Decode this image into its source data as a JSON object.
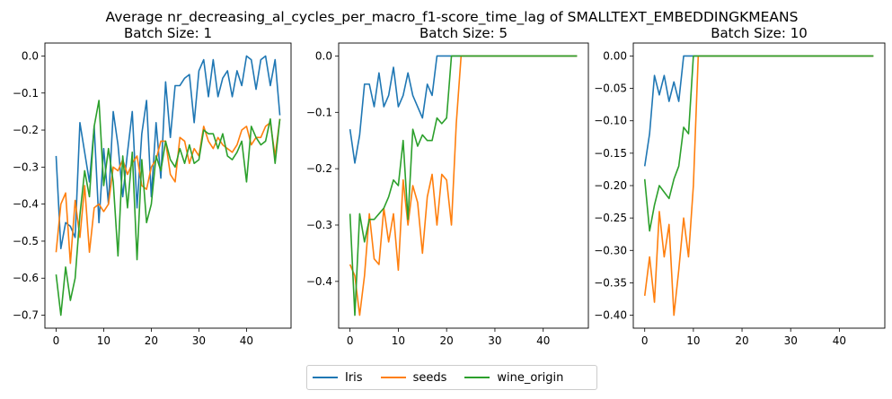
{
  "title": "Average nr_decreasing_al_cycles_per_macro_f1-score_time_lag of SMALLTEXT_EMBEDDINGKMEANS",
  "colors": {
    "Iris": "#1f77b4",
    "seeds": "#ff7f0e",
    "wine_origin": "#2ca02c"
  },
  "legend": [
    "Iris",
    "seeds",
    "wine_origin"
  ],
  "chart_data": [
    {
      "type": "line",
      "title": "Batch Size: 1",
      "xlim": [
        -2.35,
        49.35
      ],
      "ylim": [
        -0.735,
        0.035
      ],
      "xticks": [
        0,
        10,
        20,
        30,
        40
      ],
      "yticks": [
        0.0,
        -0.1,
        -0.2,
        -0.3,
        -0.4,
        -0.5,
        -0.6,
        -0.7
      ],
      "ytick_labels": [
        "0.0",
        "−0.1",
        "−0.2",
        "−0.3",
        "−0.4",
        "−0.5",
        "−0.6",
        "−0.7"
      ],
      "series": [
        {
          "name": "Iris",
          "x": [
            0,
            1,
            2,
            3,
            4,
            5,
            6,
            7,
            8,
            9,
            10,
            11,
            12,
            13,
            14,
            15,
            16,
            17,
            18,
            19,
            20,
            21,
            22,
            23,
            24,
            25,
            26,
            27,
            28,
            29,
            30,
            31,
            32,
            33,
            34,
            35,
            36,
            37,
            38,
            39,
            40,
            41,
            42,
            43,
            44,
            45,
            46,
            47
          ],
          "values": [
            -0.27,
            -0.52,
            -0.45,
            -0.46,
            -0.49,
            -0.18,
            -0.26,
            -0.34,
            -0.19,
            -0.45,
            -0.25,
            -0.4,
            -0.15,
            -0.24,
            -0.38,
            -0.26,
            -0.15,
            -0.41,
            -0.21,
            -0.12,
            -0.38,
            -0.18,
            -0.33,
            -0.07,
            -0.22,
            -0.08,
            -0.08,
            -0.06,
            -0.05,
            -0.18,
            -0.04,
            -0.01,
            -0.11,
            -0.01,
            -0.11,
            -0.06,
            -0.04,
            -0.11,
            -0.04,
            -0.08,
            0.0,
            -0.01,
            -0.09,
            -0.01,
            -0.0,
            -0.08,
            -0.01,
            -0.16
          ]
        },
        {
          "name": "seeds",
          "x": [
            0,
            1,
            2,
            3,
            4,
            5,
            6,
            7,
            8,
            9,
            10,
            11,
            12,
            13,
            14,
            15,
            16,
            17,
            18,
            19,
            20,
            21,
            22,
            23,
            24,
            25,
            26,
            27,
            28,
            29,
            30,
            31,
            32,
            33,
            34,
            35,
            36,
            37,
            38,
            39,
            40,
            41,
            42,
            43,
            44,
            45,
            46,
            47
          ],
          "values": [
            -0.53,
            -0.4,
            -0.37,
            -0.56,
            -0.39,
            -0.49,
            -0.35,
            -0.53,
            -0.41,
            -0.4,
            -0.42,
            -0.4,
            -0.3,
            -0.31,
            -0.28,
            -0.32,
            -0.29,
            -0.27,
            -0.35,
            -0.36,
            -0.3,
            -0.28,
            -0.23,
            -0.23,
            -0.32,
            -0.34,
            -0.22,
            -0.23,
            -0.29,
            -0.25,
            -0.27,
            -0.19,
            -0.23,
            -0.25,
            -0.22,
            -0.24,
            -0.25,
            -0.26,
            -0.24,
            -0.2,
            -0.19,
            -0.24,
            -0.22,
            -0.22,
            -0.19,
            -0.18,
            -0.27,
            -0.17
          ]
        },
        {
          "name": "wine_origin",
          "x": [
            0,
            1,
            2,
            3,
            4,
            5,
            6,
            7,
            8,
            9,
            10,
            11,
            12,
            13,
            14,
            15,
            16,
            17,
            18,
            19,
            20,
            21,
            22,
            23,
            24,
            25,
            26,
            27,
            28,
            29,
            30,
            31,
            32,
            33,
            34,
            35,
            36,
            37,
            38,
            39,
            40,
            41,
            42,
            43,
            44,
            45,
            46,
            47
          ],
          "values": [
            -0.59,
            -0.7,
            -0.57,
            -0.66,
            -0.6,
            -0.43,
            -0.31,
            -0.38,
            -0.19,
            -0.12,
            -0.35,
            -0.25,
            -0.34,
            -0.54,
            -0.27,
            -0.41,
            -0.26,
            -0.55,
            -0.28,
            -0.45,
            -0.4,
            -0.27,
            -0.31,
            -0.23,
            -0.28,
            -0.3,
            -0.25,
            -0.29,
            -0.24,
            -0.29,
            -0.28,
            -0.2,
            -0.21,
            -0.21,
            -0.25,
            -0.21,
            -0.27,
            -0.28,
            -0.26,
            -0.23,
            -0.34,
            -0.19,
            -0.22,
            -0.24,
            -0.23,
            -0.17,
            -0.29,
            -0.17
          ]
        }
      ]
    },
    {
      "type": "line",
      "title": "Batch Size: 5",
      "xlim": [
        -2.35,
        49.35
      ],
      "ylim": [
        -0.483,
        0.023
      ],
      "xticks": [
        0,
        10,
        20,
        30,
        40
      ],
      "yticks": [
        0.0,
        -0.1,
        -0.2,
        -0.3,
        -0.4
      ],
      "ytick_labels": [
        "0.0",
        "−0.1",
        "−0.2",
        "−0.3",
        "−0.4"
      ],
      "series": [
        {
          "name": "Iris",
          "x": [
            0,
            1,
            2,
            3,
            4,
            5,
            6,
            7,
            8,
            9,
            10,
            11,
            12,
            13,
            14,
            15,
            16,
            17,
            18,
            19,
            20,
            21,
            22,
            23,
            24,
            25,
            26,
            27,
            28,
            29,
            30,
            31,
            32,
            33,
            34,
            35,
            36,
            37,
            38,
            39,
            40,
            41,
            42,
            43,
            44,
            45,
            46,
            47
          ],
          "values": [
            -0.13,
            -0.19,
            -0.14,
            -0.05,
            -0.05,
            -0.09,
            -0.03,
            -0.09,
            -0.07,
            -0.02,
            -0.09,
            -0.07,
            -0.03,
            -0.07,
            -0.09,
            -0.11,
            -0.05,
            -0.07,
            0,
            0,
            0,
            0,
            0,
            0,
            0,
            0,
            0,
            0,
            0,
            0,
            0,
            0,
            0,
            0,
            0,
            0,
            0,
            0,
            0,
            0,
            0,
            0,
            0,
            0,
            0,
            0,
            0,
            0
          ]
        },
        {
          "name": "seeds",
          "x": [
            0,
            1,
            2,
            3,
            4,
            5,
            6,
            7,
            8,
            9,
            10,
            11,
            12,
            13,
            14,
            15,
            16,
            17,
            18,
            19,
            20,
            21,
            22,
            23,
            24,
            25,
            26,
            27,
            28,
            29,
            30,
            31,
            32,
            33,
            34,
            35,
            36,
            37,
            38,
            39,
            40,
            41,
            42,
            43,
            44,
            45,
            46,
            47
          ],
          "values": [
            -0.37,
            -0.39,
            -0.46,
            -0.39,
            -0.28,
            -0.36,
            -0.37,
            -0.27,
            -0.33,
            -0.28,
            -0.38,
            -0.22,
            -0.3,
            -0.23,
            -0.26,
            -0.35,
            -0.25,
            -0.21,
            -0.3,
            -0.21,
            -0.22,
            -0.3,
            -0.12,
            0,
            0,
            0,
            0,
            0,
            0,
            0,
            0,
            0,
            0,
            0,
            0,
            0,
            0,
            0,
            0,
            0,
            0,
            0,
            0,
            0,
            0,
            0,
            0,
            0
          ]
        },
        {
          "name": "wine_origin",
          "x": [
            0,
            1,
            2,
            3,
            4,
            5,
            6,
            7,
            8,
            9,
            10,
            11,
            12,
            13,
            14,
            15,
            16,
            17,
            18,
            19,
            20,
            21,
            22,
            23,
            24,
            25,
            26,
            27,
            28,
            29,
            30,
            31,
            32,
            33,
            34,
            35,
            36,
            37,
            38,
            39,
            40,
            41,
            42,
            43,
            44,
            45,
            46,
            47
          ],
          "values": [
            -0.28,
            -0.46,
            -0.28,
            -0.33,
            -0.29,
            -0.29,
            -0.28,
            -0.27,
            -0.25,
            -0.22,
            -0.23,
            -0.15,
            -0.29,
            -0.13,
            -0.16,
            -0.14,
            -0.15,
            -0.15,
            -0.11,
            -0.12,
            -0.11,
            0,
            0,
            0,
            0,
            0,
            0,
            0,
            0,
            0,
            0,
            0,
            0,
            0,
            0,
            0,
            0,
            0,
            0,
            0,
            0,
            0,
            0,
            0,
            0,
            0,
            0,
            0
          ]
        }
      ]
    },
    {
      "type": "line",
      "title": "Batch Size: 10",
      "xlim": [
        -2.35,
        49.35
      ],
      "ylim": [
        -0.42,
        0.02
      ],
      "xticks": [
        0,
        10,
        20,
        30,
        40
      ],
      "yticks": [
        0.0,
        -0.05,
        -0.1,
        -0.15,
        -0.2,
        -0.25,
        -0.3,
        -0.35,
        -0.4
      ],
      "ytick_labels": [
        "0.00",
        "−0.05",
        "−0.10",
        "−0.15",
        "−0.20",
        "−0.25",
        "−0.30",
        "−0.35",
        "−0.40"
      ],
      "series": [
        {
          "name": "Iris",
          "x": [
            0,
            1,
            2,
            3,
            4,
            5,
            6,
            7,
            8,
            9,
            10,
            11,
            12,
            13,
            14,
            15,
            16,
            17,
            18,
            19,
            20,
            21,
            22,
            23,
            24,
            25,
            26,
            27,
            28,
            29,
            30,
            31,
            32,
            33,
            34,
            35,
            36,
            37,
            38,
            39,
            40,
            41,
            42,
            43,
            44,
            45,
            46,
            47
          ],
          "values": [
            -0.17,
            -0.12,
            -0.03,
            -0.06,
            -0.03,
            -0.07,
            -0.04,
            -0.07,
            0,
            0,
            0,
            0,
            0,
            0,
            0,
            0,
            0,
            0,
            0,
            0,
            0,
            0,
            0,
            0,
            0,
            0,
            0,
            0,
            0,
            0,
            0,
            0,
            0,
            0,
            0,
            0,
            0,
            0,
            0,
            0,
            0,
            0,
            0,
            0,
            0,
            0,
            0,
            0
          ]
        },
        {
          "name": "seeds",
          "x": [
            0,
            1,
            2,
            3,
            4,
            5,
            6,
            7,
            8,
            9,
            10,
            11,
            12,
            13,
            14,
            15,
            16,
            17,
            18,
            19,
            20,
            21,
            22,
            23,
            24,
            25,
            26,
            27,
            28,
            29,
            30,
            31,
            32,
            33,
            34,
            35,
            36,
            37,
            38,
            39,
            40,
            41,
            42,
            43,
            44,
            45,
            46,
            47
          ],
          "values": [
            -0.37,
            -0.31,
            -0.38,
            -0.24,
            -0.31,
            -0.26,
            -0.4,
            -0.33,
            -0.25,
            -0.31,
            -0.2,
            0,
            0,
            0,
            0,
            0,
            0,
            0,
            0,
            0,
            0,
            0,
            0,
            0,
            0,
            0,
            0,
            0,
            0,
            0,
            0,
            0,
            0,
            0,
            0,
            0,
            0,
            0,
            0,
            0,
            0,
            0,
            0,
            0,
            0,
            0,
            0,
            0
          ]
        },
        {
          "name": "wine_origin",
          "x": [
            0,
            1,
            2,
            3,
            4,
            5,
            6,
            7,
            8,
            9,
            10,
            11,
            12,
            13,
            14,
            15,
            16,
            17,
            18,
            19,
            20,
            21,
            22,
            23,
            24,
            25,
            26,
            27,
            28,
            29,
            30,
            31,
            32,
            33,
            34,
            35,
            36,
            37,
            38,
            39,
            40,
            41,
            42,
            43,
            44,
            45,
            46,
            47
          ],
          "values": [
            -0.19,
            -0.27,
            -0.23,
            -0.2,
            -0.21,
            -0.22,
            -0.19,
            -0.17,
            -0.11,
            -0.12,
            0,
            0,
            0,
            0,
            0,
            0,
            0,
            0,
            0,
            0,
            0,
            0,
            0,
            0,
            0,
            0,
            0,
            0,
            0,
            0,
            0,
            0,
            0,
            0,
            0,
            0,
            0,
            0,
            0,
            0,
            0,
            0,
            0,
            0,
            0,
            0,
            0,
            0
          ]
        }
      ]
    }
  ]
}
